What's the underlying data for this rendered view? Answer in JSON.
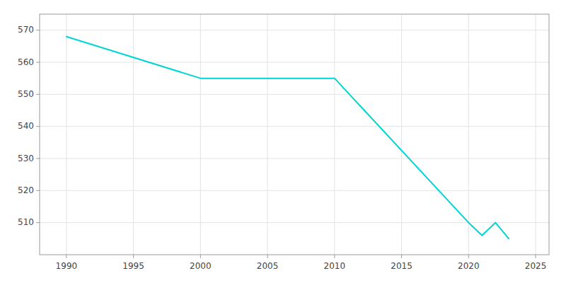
{
  "chart_data": {
    "type": "line",
    "x": [
      1990,
      2000,
      2010,
      2020,
      2021,
      2022,
      2023
    ],
    "values": [
      568,
      555,
      555,
      510,
      506,
      510,
      505
    ],
    "color": "#00d4d4",
    "xlim": [
      1988,
      2026
    ],
    "ylim": [
      500,
      575
    ],
    "xticks": [
      1990,
      1995,
      2000,
      2005,
      2010,
      2015,
      2020,
      2025
    ],
    "yticks": [
      510,
      520,
      530,
      540,
      550,
      560,
      570
    ],
    "grid": true
  }
}
